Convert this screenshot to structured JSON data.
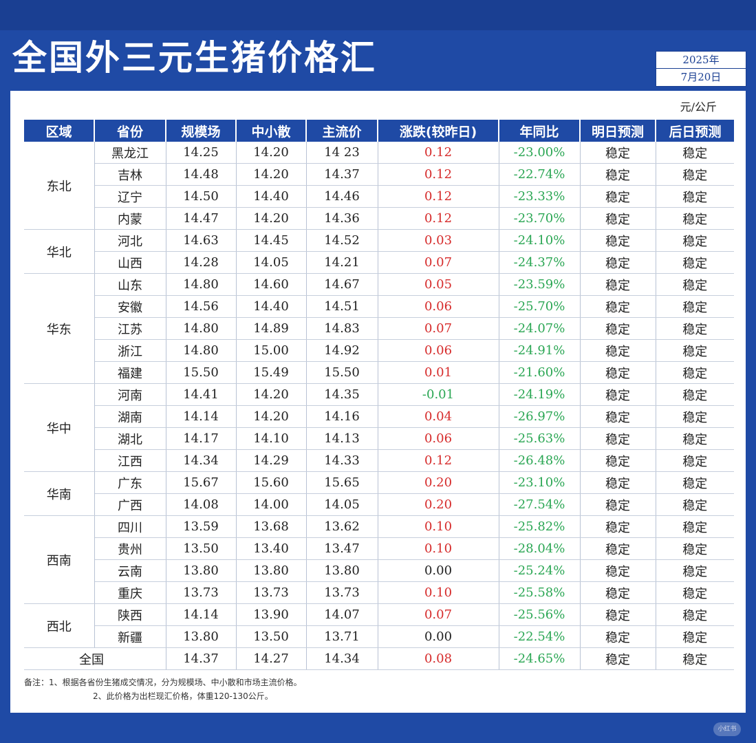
{
  "title": "全国外三元生猪价格汇",
  "date": {
    "year": "2025年",
    "day": "7月20日"
  },
  "unit": "元/公斤",
  "headers": [
    "区域",
    "省份",
    "规模场",
    "中小散",
    "主流价",
    "涨跌(较昨日)",
    "年同比",
    "明日预测",
    "后日预测"
  ],
  "regions": [
    {
      "name": "东北",
      "rows": [
        {
          "province": "黑龙江",
          "large": "14.25",
          "small": "14.20",
          "main": "14 23",
          "change": "0.12",
          "trend": "up",
          "yoy": "-23.00%",
          "tomorrow": "稳定",
          "after": "稳定"
        },
        {
          "province": "吉林",
          "large": "14.48",
          "small": "14.20",
          "main": "14.37",
          "change": "0.12",
          "trend": "up",
          "yoy": "-22.74%",
          "tomorrow": "稳定",
          "after": "稳定"
        },
        {
          "province": "辽宁",
          "large": "14.50",
          "small": "14.40",
          "main": "14.46",
          "change": "0.12",
          "trend": "up",
          "yoy": "-23.33%",
          "tomorrow": "稳定",
          "after": "稳定"
        },
        {
          "province": "内蒙",
          "large": "14.47",
          "small": "14.20",
          "main": "14.36",
          "change": "0.12",
          "trend": "up",
          "yoy": "-23.70%",
          "tomorrow": "稳定",
          "after": "稳定"
        }
      ]
    },
    {
      "name": "华北",
      "rows": [
        {
          "province": "河北",
          "large": "14.63",
          "small": "14.45",
          "main": "14.52",
          "change": "0.03",
          "trend": "up",
          "yoy": "-24.10%",
          "tomorrow": "稳定",
          "after": "稳定"
        },
        {
          "province": "山西",
          "large": "14.28",
          "small": "14.05",
          "main": "14.21",
          "change": "0.07",
          "trend": "up",
          "yoy": "-24.37%",
          "tomorrow": "稳定",
          "after": "稳定"
        }
      ]
    },
    {
      "name": "华东",
      "rows": [
        {
          "province": "山东",
          "large": "14.80",
          "small": "14.60",
          "main": "14.67",
          "change": "0.05",
          "trend": "up",
          "yoy": "-23.59%",
          "tomorrow": "稳定",
          "after": "稳定"
        },
        {
          "province": "安徽",
          "large": "14.56",
          "small": "14.40",
          "main": "14.51",
          "change": "0.06",
          "trend": "up",
          "yoy": "-25.70%",
          "tomorrow": "稳定",
          "after": "稳定"
        },
        {
          "province": "江苏",
          "large": "14.80",
          "small": "14.89",
          "main": "14.83",
          "change": "0.07",
          "trend": "up",
          "yoy": "-24.07%",
          "tomorrow": "稳定",
          "after": "稳定"
        },
        {
          "province": "浙江",
          "large": "14.80",
          "small": "15.00",
          "main": "14.92",
          "change": "0.06",
          "trend": "up",
          "yoy": "-24.91%",
          "tomorrow": "稳定",
          "after": "稳定"
        },
        {
          "province": "福建",
          "large": "15.50",
          "small": "15.49",
          "main": "15.50",
          "change": "0.01",
          "trend": "up",
          "yoy": "-21.60%",
          "tomorrow": "稳定",
          "after": "稳定"
        }
      ]
    },
    {
      "name": "华中",
      "rows": [
        {
          "province": "河南",
          "large": "14.41",
          "small": "14.20",
          "main": "14.35",
          "change": "-0.01",
          "trend": "down",
          "yoy": "-24.19%",
          "tomorrow": "稳定",
          "after": "稳定"
        },
        {
          "province": "湖南",
          "large": "14.14",
          "small": "14.20",
          "main": "14.16",
          "change": "0.04",
          "trend": "up",
          "yoy": "-26.97%",
          "tomorrow": "稳定",
          "after": "稳定"
        },
        {
          "province": "湖北",
          "large": "14.17",
          "small": "14.10",
          "main": "14.13",
          "change": "0.06",
          "trend": "up",
          "yoy": "-25.63%",
          "tomorrow": "稳定",
          "after": "稳定"
        },
        {
          "province": "江西",
          "large": "14.34",
          "small": "14.29",
          "main": "14.33",
          "change": "0.12",
          "trend": "up",
          "yoy": "-26.48%",
          "tomorrow": "稳定",
          "after": "稳定"
        }
      ]
    },
    {
      "name": "华南",
      "rows": [
        {
          "province": "广东",
          "large": "15.67",
          "small": "15.60",
          "main": "15.65",
          "change": "0.20",
          "trend": "up",
          "yoy": "-23.10%",
          "tomorrow": "稳定",
          "after": "稳定"
        },
        {
          "province": "广西",
          "large": "14.08",
          "small": "14.00",
          "main": "14.05",
          "change": "0.20",
          "trend": "up",
          "yoy": "-27.54%",
          "tomorrow": "稳定",
          "after": "稳定"
        }
      ]
    },
    {
      "name": "西南",
      "rows": [
        {
          "province": "四川",
          "large": "13.59",
          "small": "13.68",
          "main": "13.62",
          "change": "0.10",
          "trend": "up",
          "yoy": "-25.82%",
          "tomorrow": "稳定",
          "after": "稳定"
        },
        {
          "province": "贵州",
          "large": "13.50",
          "small": "13.40",
          "main": "13.47",
          "change": "0.10",
          "trend": "up",
          "yoy": "-28.04%",
          "tomorrow": "稳定",
          "after": "稳定"
        },
        {
          "province": "云南",
          "large": "13.80",
          "small": "13.80",
          "main": "13.80",
          "change": "0.00",
          "trend": "flat",
          "yoy": "-25.24%",
          "tomorrow": "稳定",
          "after": "稳定"
        },
        {
          "province": "重庆",
          "large": "13.73",
          "small": "13.73",
          "main": "13.73",
          "change": "0.10",
          "trend": "up",
          "yoy": "-25.58%",
          "tomorrow": "稳定",
          "after": "稳定"
        }
      ]
    },
    {
      "name": "西北",
      "rows": [
        {
          "province": "陕西",
          "large": "14.14",
          "small": "13.90",
          "main": "14.07",
          "change": "0.07",
          "trend": "up",
          "yoy": "-25.56%",
          "tomorrow": "稳定",
          "after": "稳定"
        },
        {
          "province": "新疆",
          "large": "13.80",
          "small": "13.50",
          "main": "13.71",
          "change": "0.00",
          "trend": "flat",
          "yoy": "-22.54%",
          "tomorrow": "稳定",
          "after": "稳定"
        }
      ]
    }
  ],
  "national": {
    "label": "全国",
    "large": "14.37",
    "small": "14.27",
    "main": "14.34",
    "change": "0.08",
    "trend": "up",
    "yoy": "-24.65%",
    "tomorrow": "稳定",
    "after": "稳定"
  },
  "notes": [
    "备注：1、根据各省份生猪成交情况，分为规模场、中小散和市场主流价格。",
    "2、此价格为出栏现汇价格，体重120-130公斤。"
  ],
  "watermark": "小红书",
  "colors": {
    "header_bg": "#1f4aa5",
    "up": "#d62b2b",
    "down": "#2aa653"
  }
}
